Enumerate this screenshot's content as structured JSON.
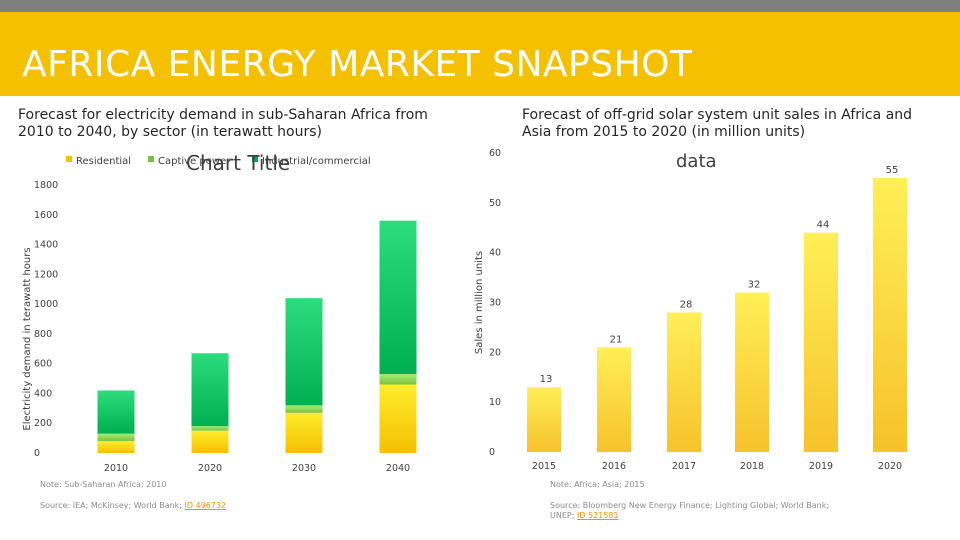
{
  "slide": {
    "title": "AFRICA ENERGY MARKET SNAPSHOT"
  },
  "colors": {
    "frame": "#f5c000",
    "residential": "#f5c000",
    "captive": "#7ac142",
    "industrial": "#00b050",
    "bars_right": "#f7c22b"
  },
  "left": {
    "heading": "Forecast for electricity demand in sub-Saharan Africa from 2010 to 2040, by sector (in terawatt hours)",
    "overlay_title": "Chart Title",
    "note": "Note: Sub-Saharan Africa; 2010",
    "source_prefix": "Source: IEA; McKinsey; World Bank; ",
    "source_link": "ID 496732"
  },
  "right": {
    "heading": "Forecast of off-grid solar system unit sales in Africa and Asia from 2015 to 2020 (in million units)",
    "overlay_title": "data",
    "note": "Note: Africa; Asia; 2015",
    "source_prefix": "Source: Bloomberg New Energy Finance; Lighting Global; World Bank; UNEP; ",
    "source_link": "ID 521581"
  },
  "chart_data": [
    {
      "type": "bar",
      "stacked": true,
      "title": "Chart Title",
      "categories": [
        "2010",
        "2020",
        "2030",
        "2040"
      ],
      "series": [
        {
          "name": "Residential",
          "values": [
            80,
            150,
            270,
            460
          ]
        },
        {
          "name": "Captive power",
          "values": [
            50,
            30,
            50,
            70
          ]
        },
        {
          "name": "Industrial/commercial",
          "values": [
            290,
            490,
            720,
            1030
          ]
        }
      ],
      "xlabel": "",
      "ylabel": "Electricity demand in terawatt hours",
      "ylim": [
        0,
        1800
      ],
      "yticks": [
        0,
        200,
        400,
        600,
        800,
        1000,
        1200,
        1400,
        1600,
        1800
      ],
      "grid": false,
      "legend": "top-left"
    },
    {
      "type": "bar",
      "title": "data",
      "categories": [
        "2015",
        "2016",
        "2017",
        "2018",
        "2019",
        "2020"
      ],
      "values": [
        13,
        21,
        28,
        32,
        44,
        55
      ],
      "xlabel": "",
      "ylabel": "Sales in million units",
      "ylim": [
        0,
        60
      ],
      "yticks": [
        0,
        10,
        20,
        30,
        40,
        50,
        60
      ],
      "grid": false
    }
  ]
}
